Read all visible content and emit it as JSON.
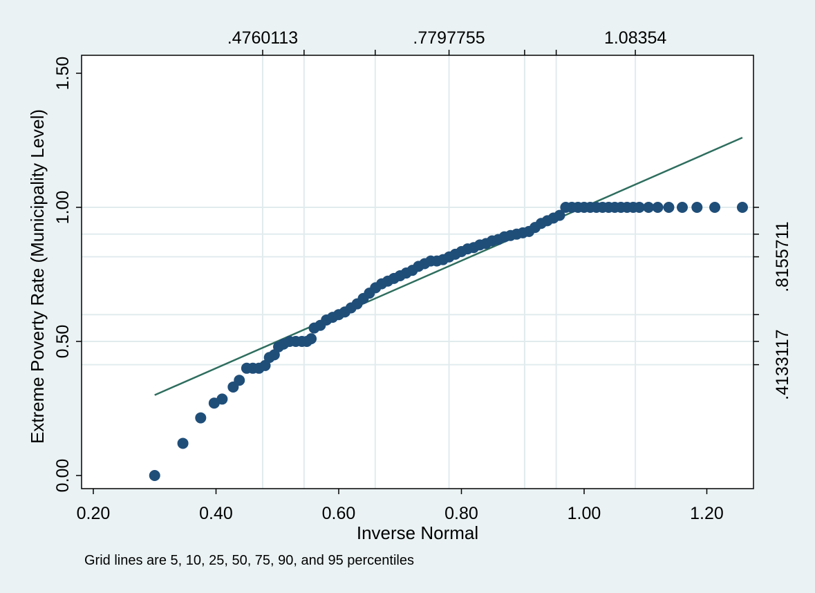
{
  "chart_data": {
    "type": "scatter",
    "title": "",
    "xlabel": "Inverse Normal",
    "ylabel": "Extreme Poverty Rate (Municipality Level)",
    "note": "Grid lines are 5, 10, 25, 50, 75, 90, and 95 percentiles",
    "xlim": [
      0.2,
      1.27
    ],
    "ylim": [
      0.0,
      1.5
    ],
    "x_ticks": [
      0.2,
      0.4,
      0.6,
      0.8,
      1.0,
      1.2
    ],
    "x_tick_labels": [
      "0.20",
      "0.40",
      "0.60",
      "0.80",
      "1.00",
      "1.20"
    ],
    "y_ticks": [
      0.0,
      0.5,
      1.0,
      1.5
    ],
    "y_tick_labels": [
      "0.00",
      "0.50",
      "1.00",
      "1.50"
    ],
    "top_axis": {
      "ticks": [
        0.476,
        0.5435,
        0.6595,
        0.7798,
        0.903,
        0.9545,
        1.0835
      ],
      "labels": [
        {
          "value": 0.4760113,
          "text": ".4760113"
        },
        {
          "value": 0.7797755,
          "text": ".7797755"
        },
        {
          "value": 1.08354,
          "text": "1.08354"
        }
      ]
    },
    "right_axis": {
      "ticks": [
        1.0,
        0.9,
        0.8155711,
        0.6,
        0.5,
        0.4133117
      ],
      "labels": [
        {
          "value": 0.8155711,
          "text": ".8155711"
        },
        {
          "value": 0.4133117,
          "text": ".4133117"
        }
      ]
    },
    "grid": true,
    "series": [
      {
        "type": "scatter",
        "color": "#1f4e79",
        "points": [
          [
            0.3,
            0.0
          ],
          [
            0.346,
            0.12
          ],
          [
            0.375,
            0.215
          ],
          [
            0.397,
            0.27
          ],
          [
            0.41,
            0.285
          ],
          [
            0.428,
            0.33
          ],
          [
            0.438,
            0.355
          ],
          [
            0.45,
            0.4
          ],
          [
            0.46,
            0.4
          ],
          [
            0.47,
            0.4
          ],
          [
            0.48,
            0.41
          ],
          [
            0.487,
            0.44
          ],
          [
            0.495,
            0.45
          ],
          [
            0.502,
            0.48
          ],
          [
            0.51,
            0.49
          ],
          [
            0.52,
            0.5
          ],
          [
            0.53,
            0.5
          ],
          [
            0.54,
            0.5
          ],
          [
            0.548,
            0.5
          ],
          [
            0.555,
            0.51
          ],
          [
            0.56,
            0.55
          ],
          [
            0.57,
            0.56
          ],
          [
            0.58,
            0.58
          ],
          [
            0.59,
            0.59
          ],
          [
            0.6,
            0.6
          ],
          [
            0.61,
            0.61
          ],
          [
            0.62,
            0.625
          ],
          [
            0.63,
            0.64
          ],
          [
            0.64,
            0.66
          ],
          [
            0.65,
            0.68
          ],
          [
            0.66,
            0.7
          ],
          [
            0.67,
            0.715
          ],
          [
            0.68,
            0.725
          ],
          [
            0.69,
            0.735
          ],
          [
            0.7,
            0.745
          ],
          [
            0.71,
            0.755
          ],
          [
            0.72,
            0.765
          ],
          [
            0.73,
            0.78
          ],
          [
            0.74,
            0.79
          ],
          [
            0.75,
            0.8
          ],
          [
            0.76,
            0.8
          ],
          [
            0.77,
            0.805
          ],
          [
            0.78,
            0.815
          ],
          [
            0.79,
            0.825
          ],
          [
            0.8,
            0.835
          ],
          [
            0.81,
            0.845
          ],
          [
            0.82,
            0.85
          ],
          [
            0.83,
            0.86
          ],
          [
            0.84,
            0.865
          ],
          [
            0.85,
            0.875
          ],
          [
            0.86,
            0.88
          ],
          [
            0.87,
            0.89
          ],
          [
            0.88,
            0.895
          ],
          [
            0.89,
            0.9
          ],
          [
            0.9,
            0.905
          ],
          [
            0.91,
            0.91
          ],
          [
            0.92,
            0.925
          ],
          [
            0.93,
            0.94
          ],
          [
            0.94,
            0.95
          ],
          [
            0.95,
            0.96
          ],
          [
            0.96,
            0.97
          ],
          [
            0.97,
            1.0
          ],
          [
            0.98,
            1.0
          ],
          [
            0.99,
            1.0
          ],
          [
            1.0,
            1.0
          ],
          [
            1.01,
            1.0
          ],
          [
            1.02,
            1.0
          ],
          [
            1.03,
            1.0
          ],
          [
            1.04,
            1.0
          ],
          [
            1.05,
            1.0
          ],
          [
            1.06,
            1.0
          ],
          [
            1.07,
            1.0
          ],
          [
            1.08,
            1.0
          ],
          [
            1.09,
            1.0
          ],
          [
            1.105,
            1.0
          ],
          [
            1.12,
            1.0
          ],
          [
            1.138,
            1.0
          ],
          [
            1.16,
            1.0
          ],
          [
            1.184,
            1.0
          ],
          [
            1.213,
            1.0
          ],
          [
            1.258,
            1.0
          ]
        ]
      },
      {
        "type": "line",
        "color": "#2e6e5e",
        "points": [
          [
            0.3,
            0.3
          ],
          [
            1.258,
            1.26
          ]
        ]
      }
    ]
  },
  "colors": {
    "background": "#eaf2f3",
    "plot_area": "#ffffff",
    "grid": "#e1ebee",
    "marker": "#1f4e79",
    "fit_line": "#2e6e5e"
  }
}
